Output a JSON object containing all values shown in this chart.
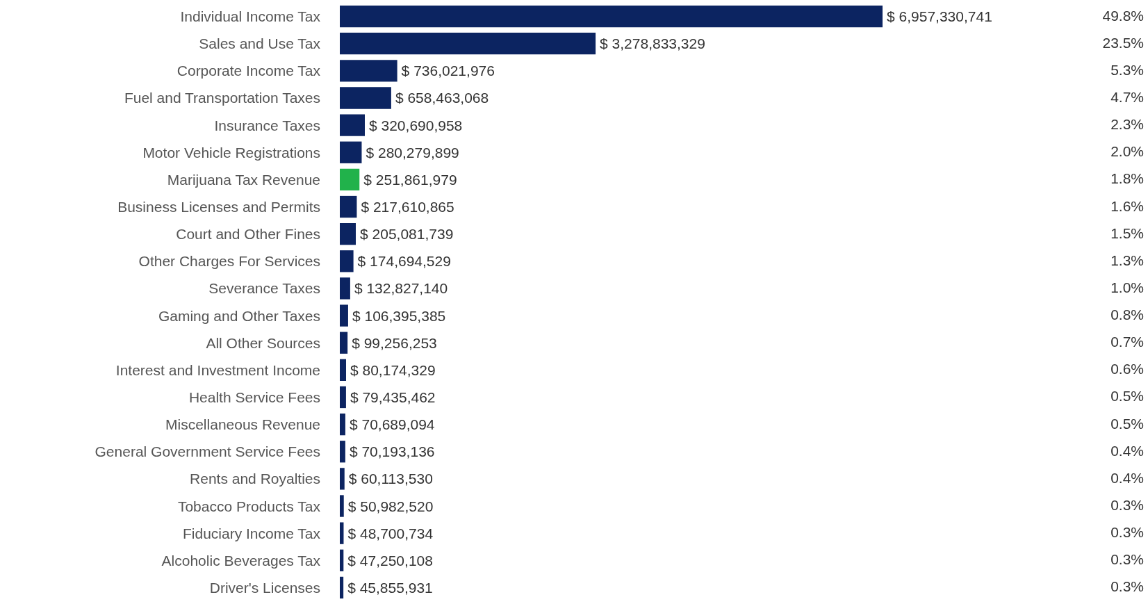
{
  "chart_data": {
    "type": "bar",
    "orientation": "horizontal",
    "categories": [
      "Individual Income Tax",
      "Sales and Use Tax",
      "Corporate Income Tax",
      "Fuel and Transportation Taxes",
      "Insurance Taxes",
      "Motor Vehicle Registrations",
      "Marijuana Tax Revenue",
      "Business Licenses and Permits",
      "Court and Other Fines",
      "Other Charges For Services",
      "Severance Taxes",
      "Gaming and Other Taxes",
      "All Other Sources",
      "Interest and Investment Income",
      "Health Service Fees",
      "Miscellaneous Revenue",
      "General Government Service Fees",
      "Rents and Royalties",
      "Tobacco Products Tax",
      "Fiduciary Income Tax",
      "Alcoholic Beverages Tax",
      "Driver's Licenses"
    ],
    "values": [
      6957330741,
      3278833329,
      736021976,
      658463068,
      320690958,
      280279899,
      251861979,
      217610865,
      205081739,
      174694529,
      132827140,
      106395385,
      99256253,
      80174329,
      79435462,
      70689094,
      70193136,
      60113530,
      50982520,
      48700734,
      47250108,
      45855931
    ],
    "value_labels": [
      "$ 6,957,330,741",
      "$ 3,278,833,329",
      "$ 736,021,976",
      "$ 658,463,068",
      "$ 320,690,958",
      "$ 280,279,899",
      "$ 251,861,979",
      "$ 217,610,865",
      "$ 205,081,739",
      "$ 174,694,529",
      "$ 132,827,140",
      "$ 106,395,385",
      "$ 99,256,253",
      "$ 80,174,329",
      "$ 79,435,462",
      "$ 70,689,094",
      "$ 70,193,136",
      "$ 60,113,530",
      "$ 50,982,520",
      "$ 48,700,734",
      "$ 47,250,108",
      "$ 45,855,931"
    ],
    "colors": [
      "#0c2461",
      "#0c2461",
      "#0c2461",
      "#0c2461",
      "#0c2461",
      "#0c2461",
      "#21b24b",
      "#0c2461",
      "#0c2461",
      "#0c2461",
      "#0c2461",
      "#0c2461",
      "#0c2461",
      "#0c2461",
      "#0c2461",
      "#0c2461",
      "#0c2461",
      "#0c2461",
      "#0c2461",
      "#0c2461",
      "#0c2461",
      "#0c2461"
    ],
    "annotations": [
      "49.8%",
      "23.5%",
      "5.3%",
      "4.7%",
      "2.3%",
      "2.0%",
      "1.8%",
      "1.6%",
      "1.5%",
      "1.3%",
      "1.0%",
      "0.8%",
      "0.7%",
      "0.6%",
      "0.5%",
      "0.5%",
      "0.4%",
      "0.4%",
      "0.3%",
      "0.3%",
      "0.3%",
      "0.3%"
    ]
  }
}
